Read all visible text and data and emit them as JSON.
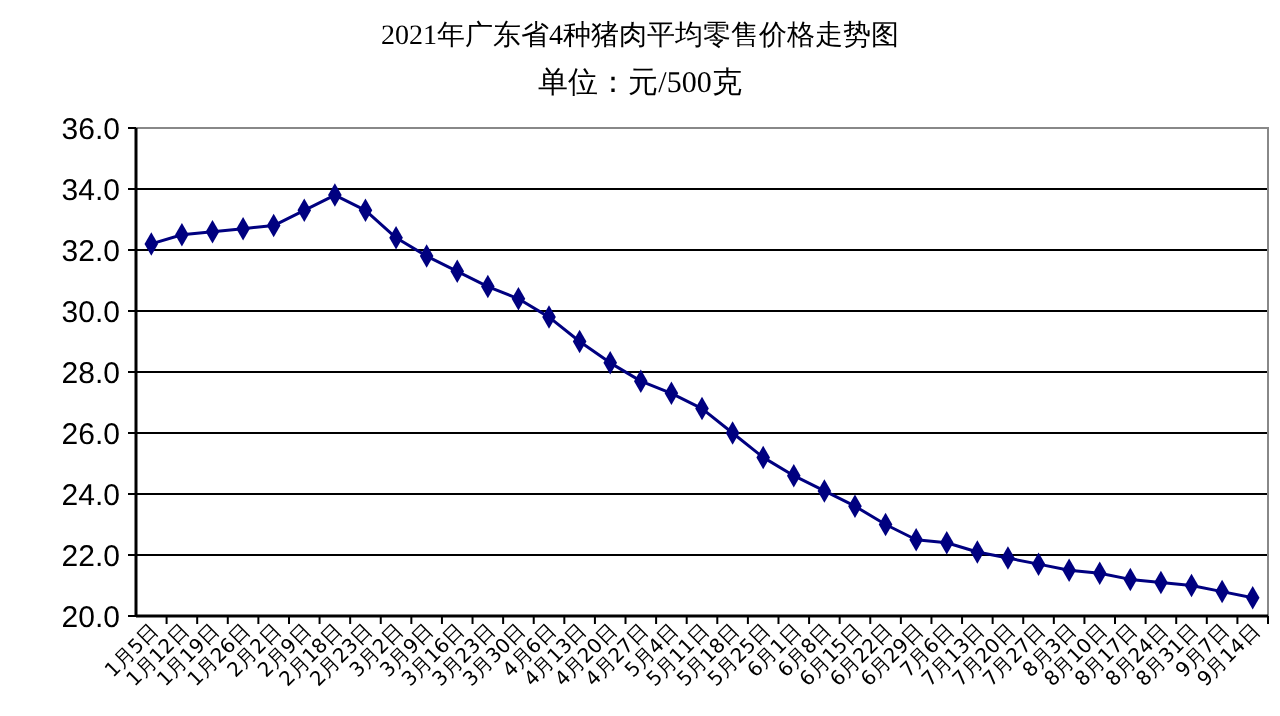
{
  "chart_data": {
    "type": "line",
    "title": "2021年广东省4种猪肉平均零售价格走势图",
    "subtitle": "单位：元/500克",
    "categories": [
      "1月5日",
      "1月12日",
      "1月19日",
      "1月26日",
      "2月2日",
      "2月9日",
      "2月18日",
      "2月23日",
      "3月2日",
      "3月9日",
      "3月16日",
      "3月23日",
      "3月30日",
      "4月6日",
      "4月13日",
      "4月20日",
      "4月27日",
      "5月4日",
      "5月11日",
      "5月18日",
      "5月25日",
      "6月1日",
      "6月8日",
      "6月15日",
      "6月22日",
      "6月29日",
      "7月6日",
      "7月13日",
      "7月20日",
      "7月27日",
      "8月3日",
      "8月10日",
      "8月17日",
      "8月24日",
      "8月31日",
      "9月7日",
      "9月14日"
    ],
    "series": [
      {
        "color": "#000080",
        "values": [
          32.2,
          32.5,
          32.6,
          32.7,
          32.8,
          33.3,
          33.8,
          33.3,
          32.4,
          31.8,
          31.3,
          30.8,
          30.4,
          29.8,
          29.0,
          28.3,
          27.7,
          27.3,
          26.8,
          26.0,
          25.2,
          24.6,
          24.1,
          23.6,
          23.0,
          22.5,
          22.4,
          22.1,
          21.9,
          21.7,
          21.5,
          21.4,
          21.2,
          21.1,
          21.0,
          20.8,
          20.6
        ]
      }
    ],
    "ylim": [
      20,
      36
    ],
    "yticks": [
      {
        "value": 20,
        "label": "20.0"
      },
      {
        "value": 22,
        "label": "22.0"
      },
      {
        "value": 24,
        "label": "24.0"
      },
      {
        "value": 26,
        "label": "26.0"
      },
      {
        "value": 28,
        "label": "28.0"
      },
      {
        "value": 30,
        "label": "30.0"
      },
      {
        "value": 32,
        "label": "32.0"
      },
      {
        "value": 34,
        "label": "34.0"
      },
      {
        "value": 36,
        "label": "36.0"
      }
    ],
    "grid": "y",
    "marker": "diamond"
  }
}
